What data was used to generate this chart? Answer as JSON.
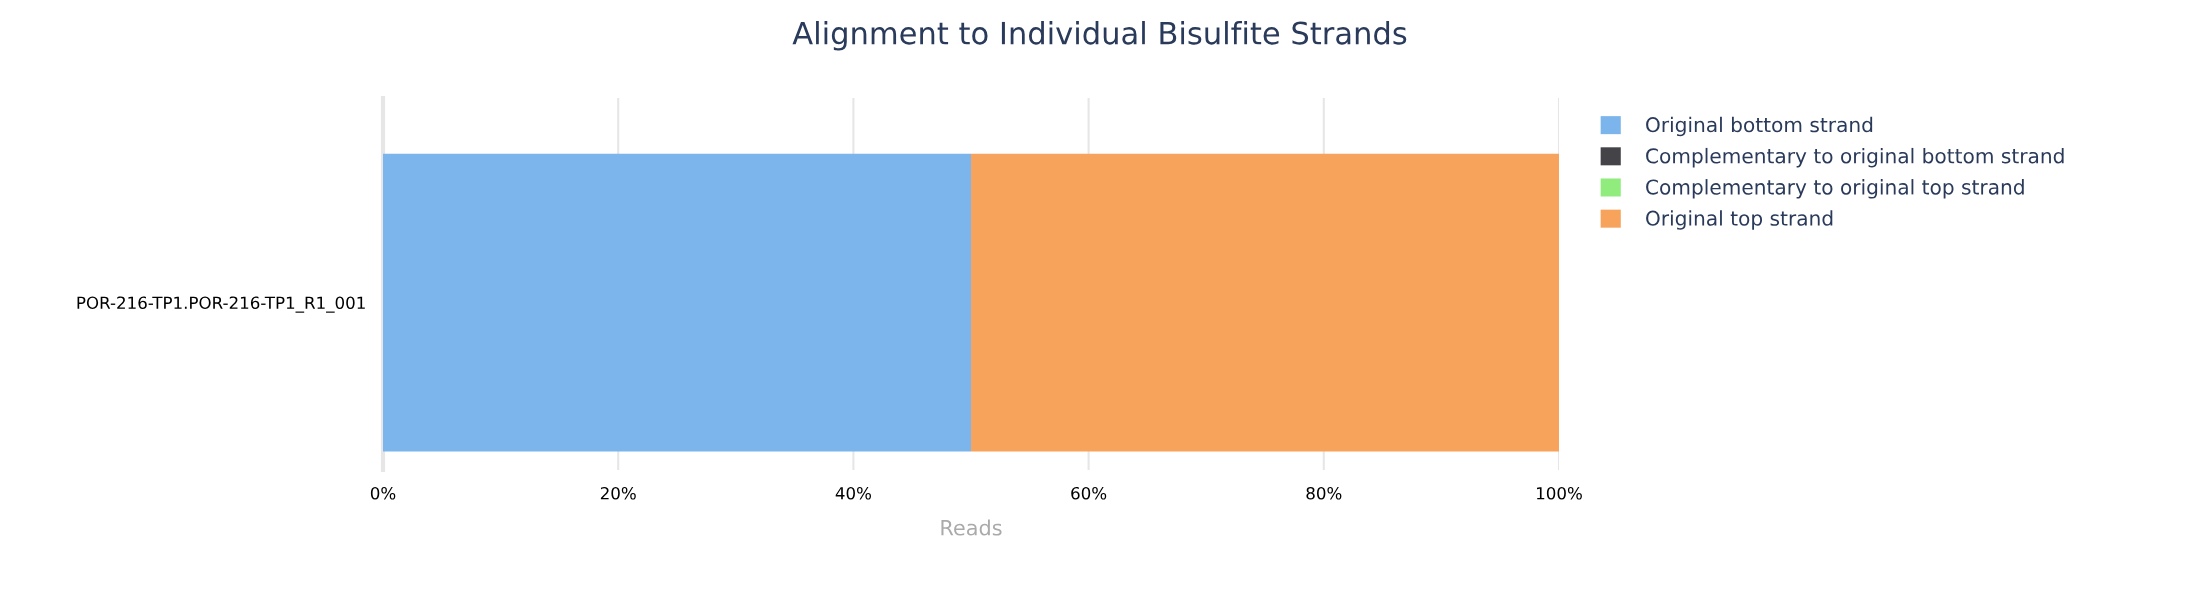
{
  "chart_data": {
    "type": "bar",
    "title": "Alignment to Individual Bisulfite Strands",
    "xlabel": "Reads",
    "orientation": "horizontal",
    "stacked": true,
    "categories": [
      "POR-216-TP1.POR-216-TP1_R1_001"
    ],
    "series": [
      {
        "name": "Original bottom strand",
        "color": "#7cb5ec",
        "values": [
          50
        ]
      },
      {
        "name": "Complementary to original bottom strand",
        "color": "#434348",
        "values": [
          0
        ]
      },
      {
        "name": "Complementary to original top strand",
        "color": "#90ed7d",
        "values": [
          0
        ]
      },
      {
        "name": "Original top strand",
        "color": "#f7a35c",
        "values": [
          50
        ]
      }
    ],
    "xlim": [
      0,
      100
    ],
    "xticks": [
      {
        "value": 0,
        "label": "0%"
      },
      {
        "value": 20,
        "label": "20%"
      },
      {
        "value": 40,
        "label": "40%"
      },
      {
        "value": 60,
        "label": "60%"
      },
      {
        "value": 80,
        "label": "80%"
      },
      {
        "value": 100,
        "label": "100%"
      }
    ],
    "grid": "x",
    "legend": "top right"
  }
}
